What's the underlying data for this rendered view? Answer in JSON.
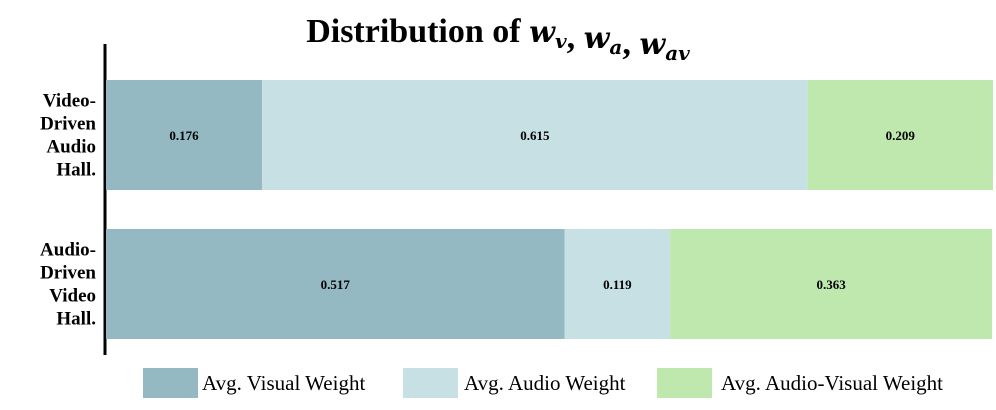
{
  "chart_data": {
    "type": "bar",
    "orientation": "horizontal",
    "stacked": true,
    "title": "Distribution of w_v, w_a, w_av",
    "title_parts": [
      {
        "text": "Distribution of ",
        "kind": "plain"
      },
      {
        "text": "w",
        "kind": "var",
        "sub": "v"
      },
      {
        "text": ", ",
        "kind": "plain"
      },
      {
        "text": "w",
        "kind": "var",
        "sub": "a"
      },
      {
        "text": ", ",
        "kind": "plain"
      },
      {
        "text": "w",
        "kind": "var",
        "sub": "av"
      }
    ],
    "categories": [
      [
        "Video-",
        "Driven",
        "Audio",
        "Hall."
      ],
      [
        "Audio-",
        "Driven",
        "Video",
        "Hall."
      ]
    ],
    "series": [
      {
        "name": "Avg. Visual Weight",
        "color": "#94b9c2",
        "values": [
          0.176,
          0.517
        ]
      },
      {
        "name": "Avg. Audio Weight",
        "color": "#c7e0e4",
        "values": [
          0.615,
          0.119
        ]
      },
      {
        "name": "Avg. Audio-Visual Weight",
        "color": "#bee8ad",
        "values": [
          0.209,
          0.363
        ]
      }
    ],
    "xlim": [
      0,
      1
    ],
    "grid": false,
    "legend_position": "bottom"
  }
}
